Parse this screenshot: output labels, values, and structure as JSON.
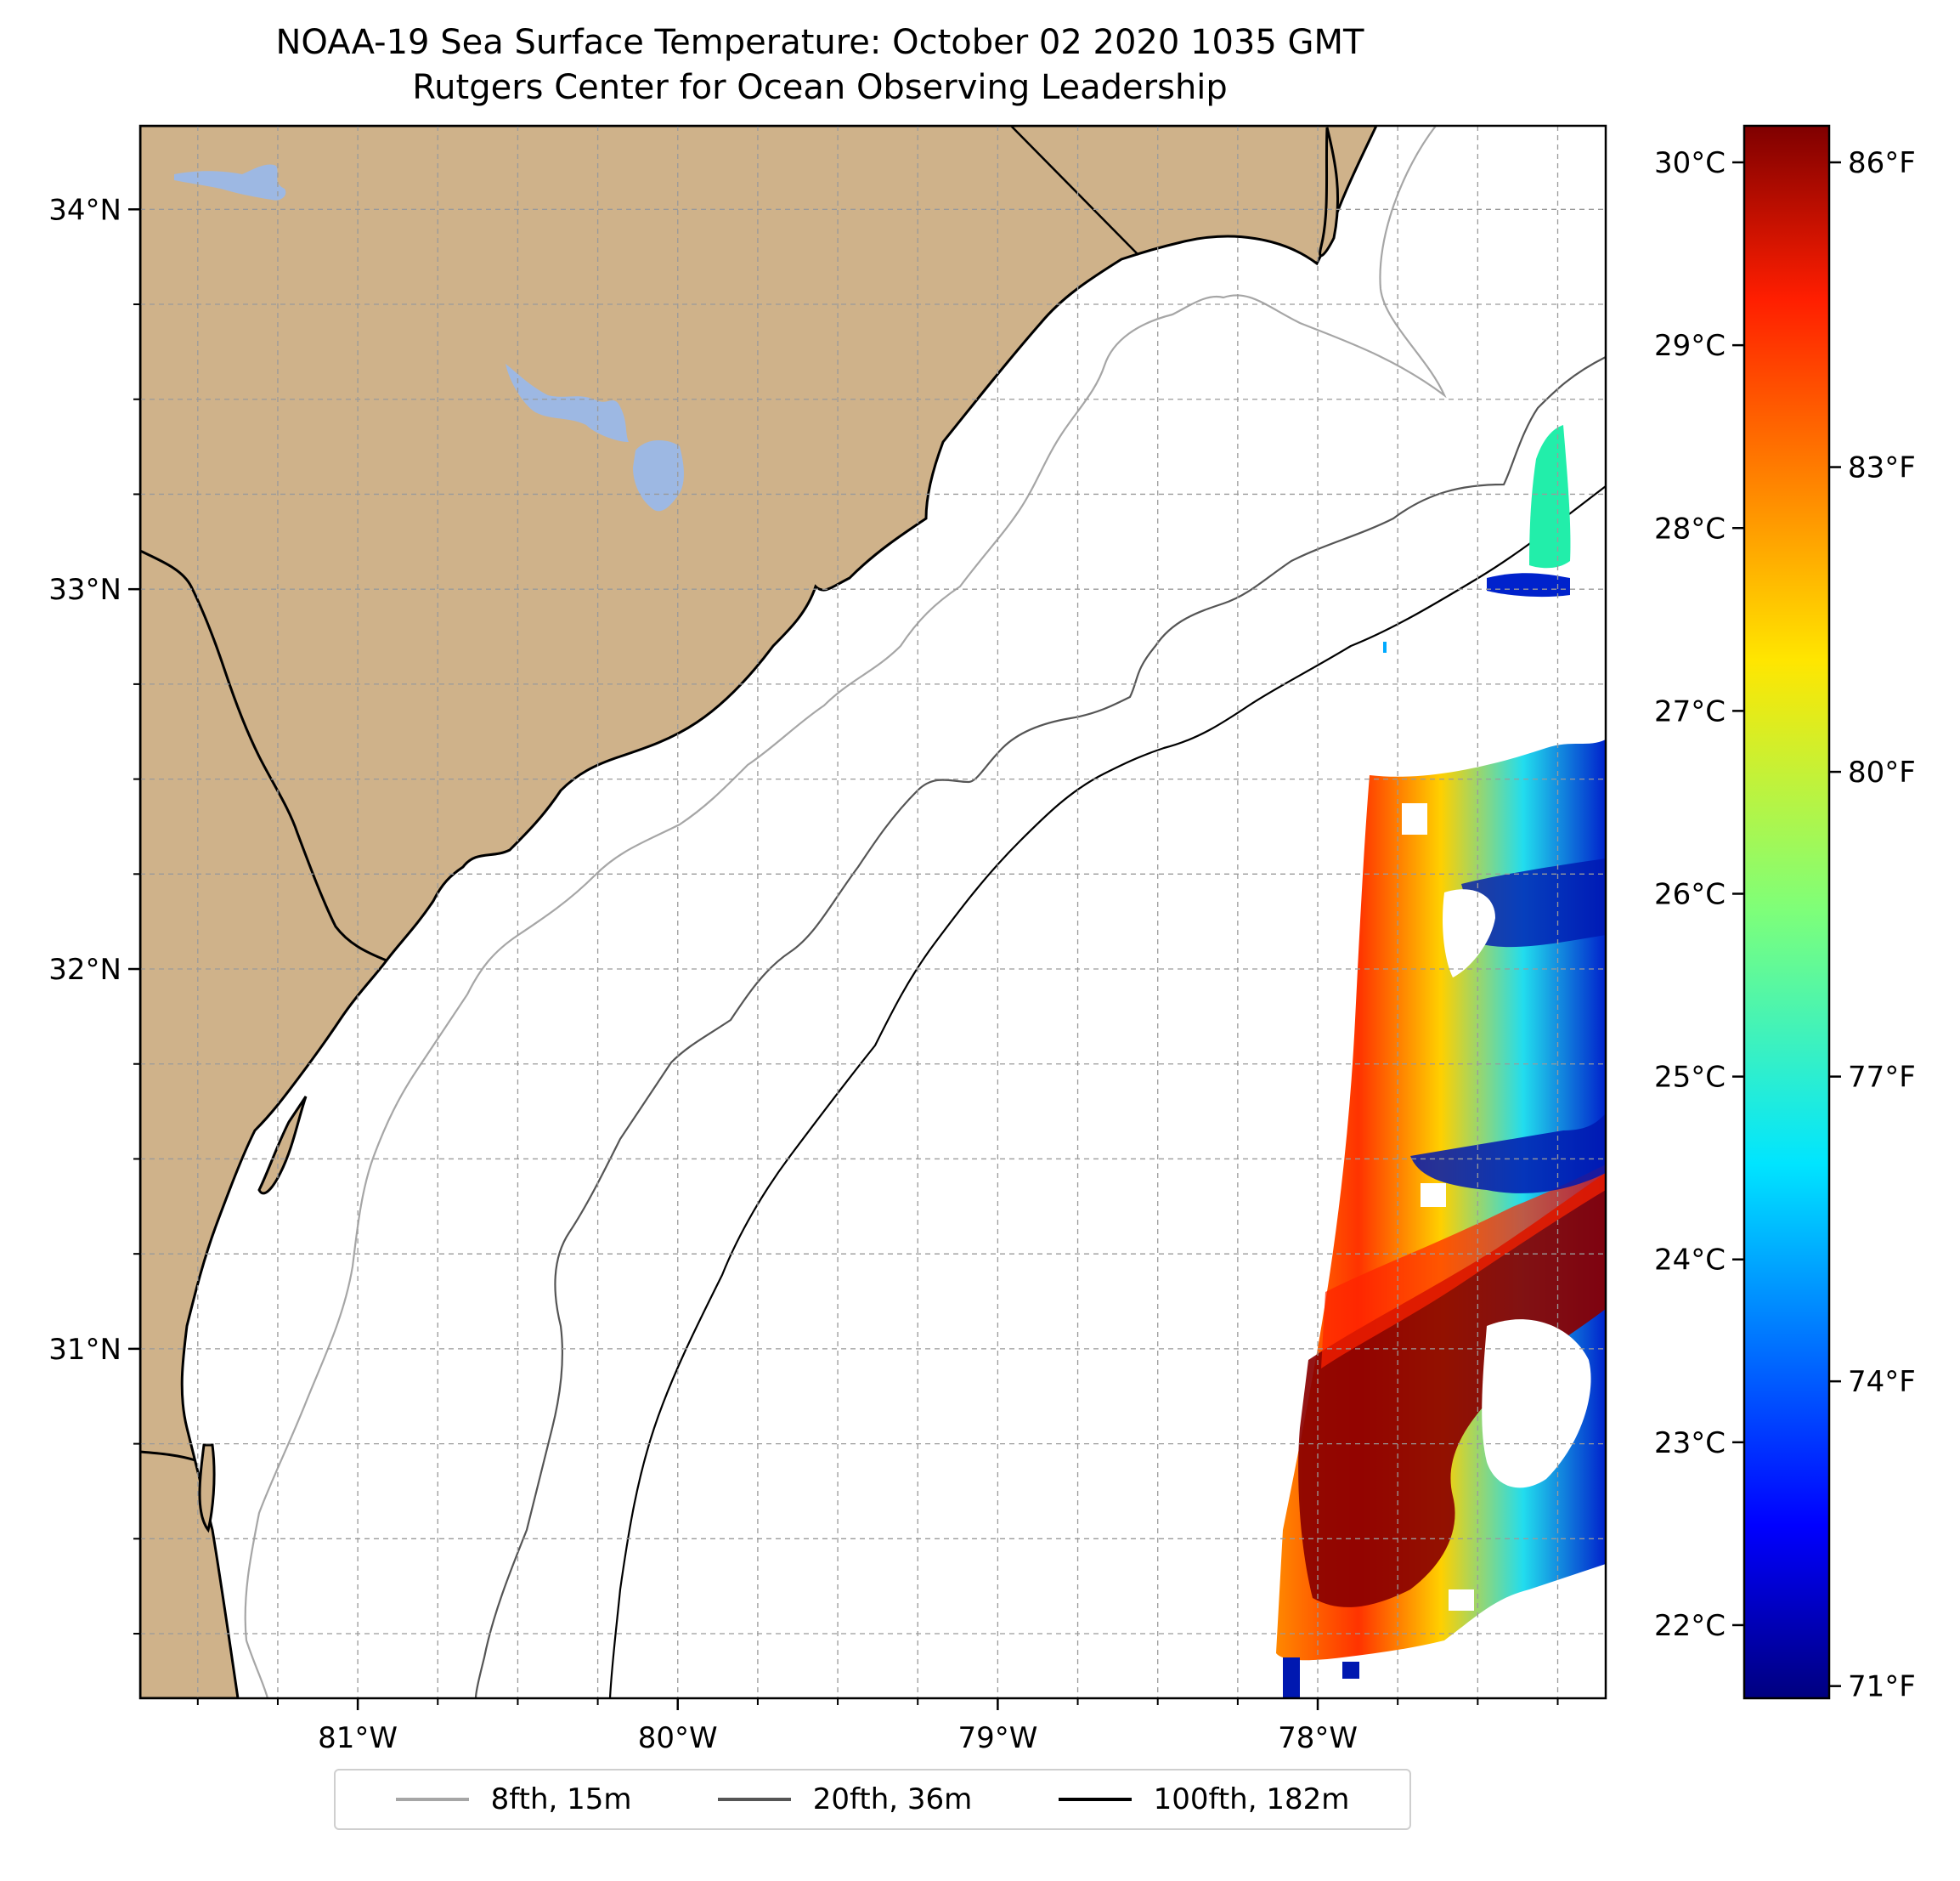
{
  "title": {
    "line1": "NOAA-19 Sea Surface Temperature: October 02 2020 1035 GMT",
    "line2": "Rutgers Center for Ocean Observing Leadership"
  },
  "map": {
    "lon_range": [
      -81.68,
      -77.1
    ],
    "lat_range": [
      30.08,
      34.22
    ],
    "lon_ticks": [
      {
        "value": -81,
        "label": "81°W"
      },
      {
        "value": -80,
        "label": "80°W"
      },
      {
        "value": -79,
        "label": "79°W"
      },
      {
        "value": -78,
        "label": "78°W"
      }
    ],
    "lat_ticks": [
      {
        "value": 31,
        "label": "31°N"
      },
      {
        "value": 32,
        "label": "32°N"
      },
      {
        "value": 33,
        "label": "33°N"
      },
      {
        "value": 34,
        "label": "34°N"
      }
    ],
    "land_color": "#cfb28a",
    "lake_color": "#9db8e3",
    "grid": "dashed"
  },
  "colorbar": {
    "colormap": "jet",
    "range_c": [
      21.6,
      30.2
    ],
    "celsius_ticks": [
      {
        "value": 22,
        "label": "22°C"
      },
      {
        "value": 23,
        "label": "23°C"
      },
      {
        "value": 24,
        "label": "24°C"
      },
      {
        "value": 25,
        "label": "25°C"
      },
      {
        "value": 26,
        "label": "26°C"
      },
      {
        "value": 27,
        "label": "27°C"
      },
      {
        "value": 28,
        "label": "28°C"
      },
      {
        "value": 29,
        "label": "29°C"
      },
      {
        "value": 30,
        "label": "30°C"
      }
    ],
    "fahrenheit_ticks": [
      {
        "value": 71,
        "label": "71°F"
      },
      {
        "value": 74,
        "label": "74°F"
      },
      {
        "value": 77,
        "label": "77°F"
      },
      {
        "value": 80,
        "label": "80°F"
      },
      {
        "value": 83,
        "label": "83°F"
      },
      {
        "value": 86,
        "label": "86°F"
      }
    ]
  },
  "legend": {
    "items": [
      {
        "label": "8fth, 15m",
        "color": "#a6a6a6"
      },
      {
        "label": "20fth, 36m",
        "color": "#555555"
      },
      {
        "label": "100fth, 182m",
        "color": "#000000"
      }
    ]
  }
}
